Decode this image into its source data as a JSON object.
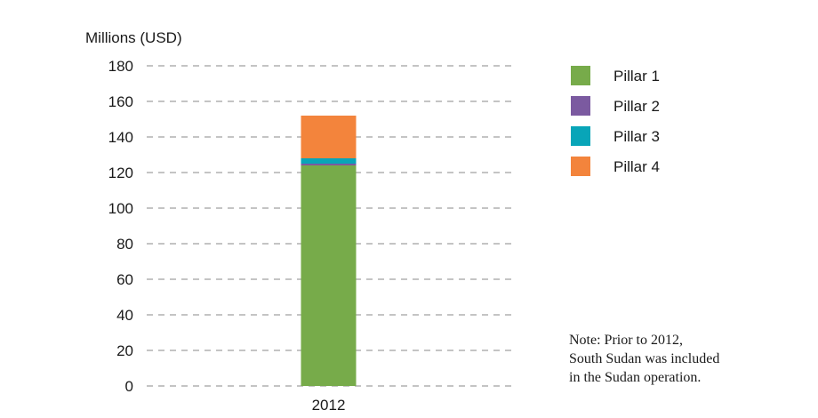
{
  "chart_data": {
    "type": "bar",
    "stacked": true,
    "ylabel": "Millions (USD)",
    "ylim": [
      0,
      180
    ],
    "yticks": [
      0,
      20,
      40,
      60,
      80,
      100,
      120,
      140,
      160,
      180
    ],
    "grid": true,
    "legend_position": "right",
    "categories": [
      "2012"
    ],
    "series": [
      {
        "name": "Pillar 1",
        "color": "#77ab4a",
        "values": [
          124
        ]
      },
      {
        "name": "Pillar 2",
        "color": "#7b5aa0",
        "values": [
          1
        ]
      },
      {
        "name": "Pillar 3",
        "color": "#08a5b8",
        "values": [
          3
        ]
      },
      {
        "name": "Pillar 4",
        "color": "#f3843c",
        "values": [
          24
        ]
      }
    ]
  },
  "note": {
    "lines": [
      "Note: Prior to 2012,",
      "South Sudan was included",
      "in the Sudan operation."
    ]
  }
}
